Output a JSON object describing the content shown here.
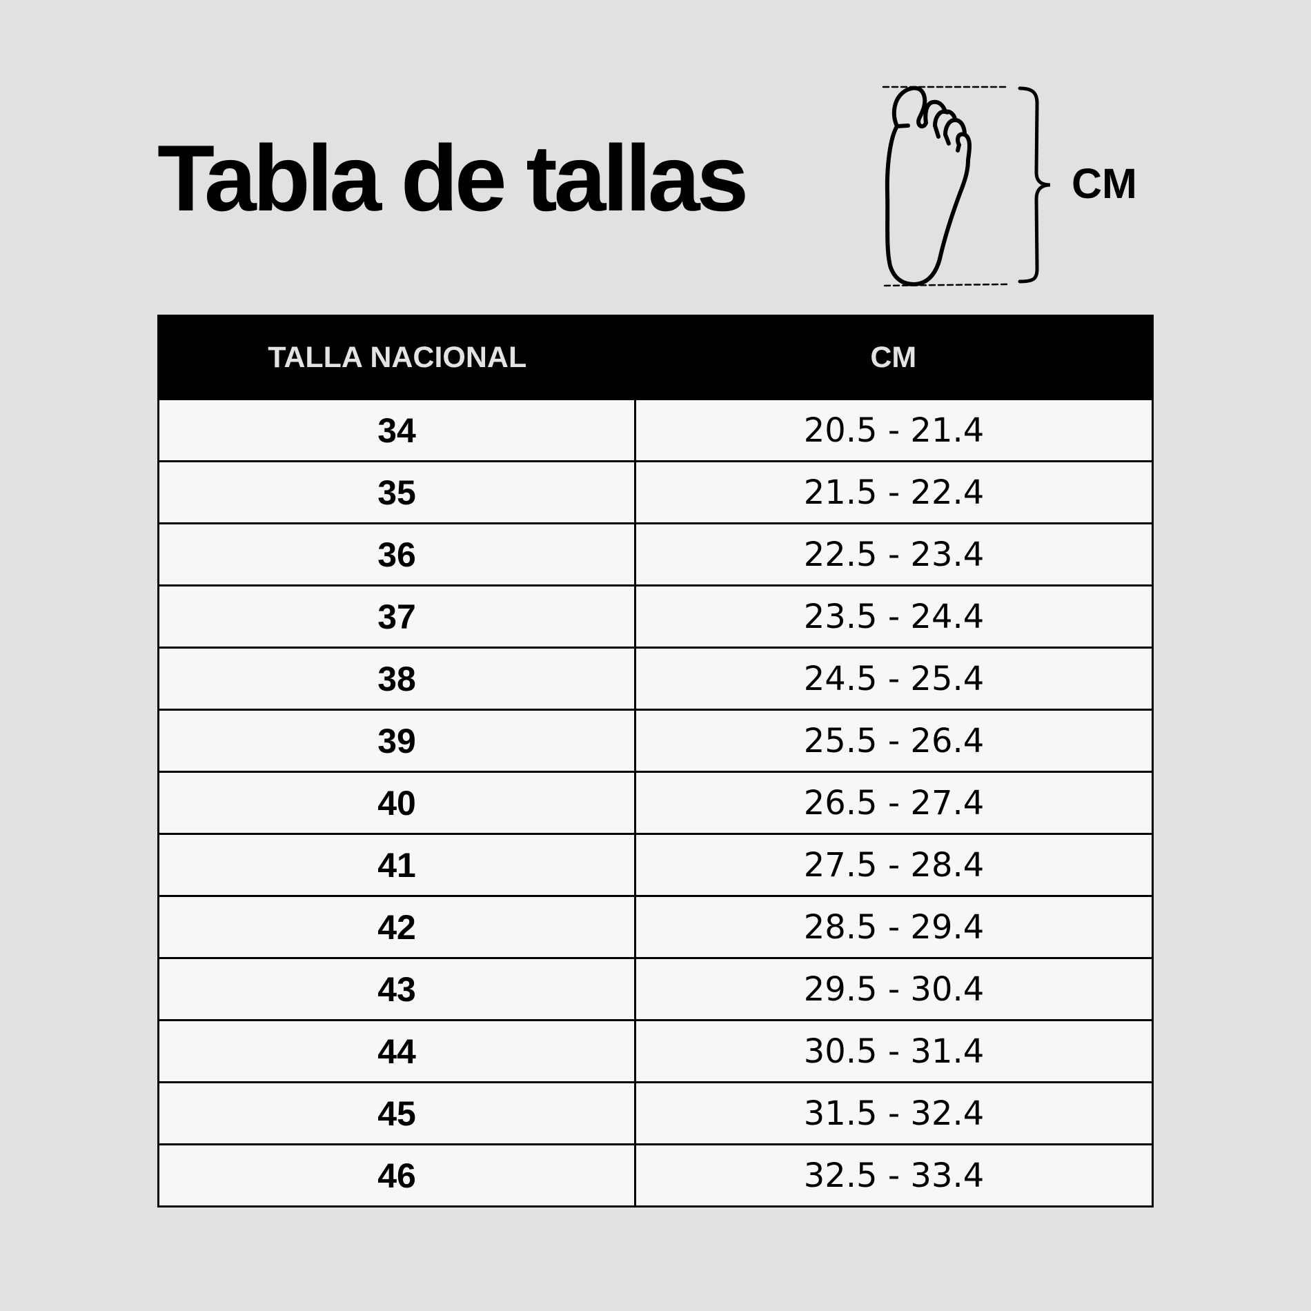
{
  "title": "Tabla de tallas",
  "diagram": {
    "icon": "foot-length-icon",
    "unit_label": "CM"
  },
  "table": {
    "headers": [
      "TALLA NACIONAL",
      "CM"
    ],
    "rows": [
      {
        "size": "34",
        "cm": "20.5 - 21.4"
      },
      {
        "size": "35",
        "cm": "21.5 - 22.4"
      },
      {
        "size": "36",
        "cm": "22.5 - 23.4"
      },
      {
        "size": "37",
        "cm": "23.5 - 24.4"
      },
      {
        "size": "38",
        "cm": "24.5 - 25.4"
      },
      {
        "size": "39",
        "cm": "25.5 - 26.4"
      },
      {
        "size": "40",
        "cm": "26.5 - 27.4"
      },
      {
        "size": "41",
        "cm": "27.5 - 28.4"
      },
      {
        "size": "42",
        "cm": "28.5 - 29.4"
      },
      {
        "size": "43",
        "cm": "29.5 - 30.4"
      },
      {
        "size": "44",
        "cm": "30.5 - 31.4"
      },
      {
        "size": "45",
        "cm": "31.5 - 32.4"
      },
      {
        "size": "46",
        "cm": "32.5 - 33.4"
      }
    ]
  },
  "colors": {
    "background": "#e1e1e1",
    "header_bg": "#000000",
    "header_text": "#e3e3e3",
    "cell_bg": "#f8f7f8"
  }
}
